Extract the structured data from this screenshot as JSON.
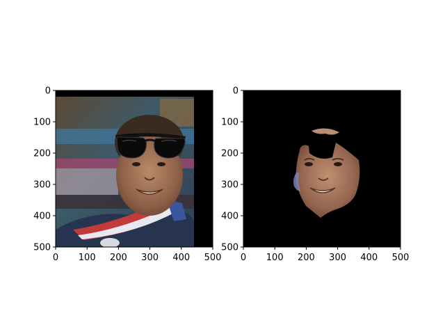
{
  "figure": {
    "background": "#ffffff",
    "axis_color": "#000000"
  },
  "chart_data": [
    {
      "type": "image",
      "title": "",
      "content": "photo of a smiling woman with a sunglasses overlay on the forehead and a red white blue medal ribbon",
      "xlim": [
        0,
        500
      ],
      "ylim": [
        500,
        0
      ],
      "xticks": [
        0,
        100,
        200,
        300,
        400,
        500
      ],
      "yticks": [
        0,
        100,
        200,
        300,
        400,
        500
      ],
      "xtick_labels": [
        "0",
        "100",
        "200",
        "300",
        "400",
        "500"
      ],
      "ytick_labels": [
        "0",
        "100",
        "200",
        "300",
        "400",
        "500"
      ],
      "xlabel": "",
      "ylabel": ""
    },
    {
      "type": "image",
      "title": "",
      "content": "segmented face on black background with the eye region removed",
      "xlim": [
        0,
        500
      ],
      "ylim": [
        500,
        0
      ],
      "xticks": [
        0,
        100,
        200,
        300,
        400,
        500
      ],
      "yticks": [
        0,
        100,
        200,
        300,
        400,
        500
      ],
      "xtick_labels": [
        "0",
        "100",
        "200",
        "300",
        "400",
        "500"
      ],
      "ytick_labels": [
        "0",
        "100",
        "200",
        "300",
        "400",
        "500"
      ],
      "xlabel": "",
      "ylabel": ""
    }
  ]
}
